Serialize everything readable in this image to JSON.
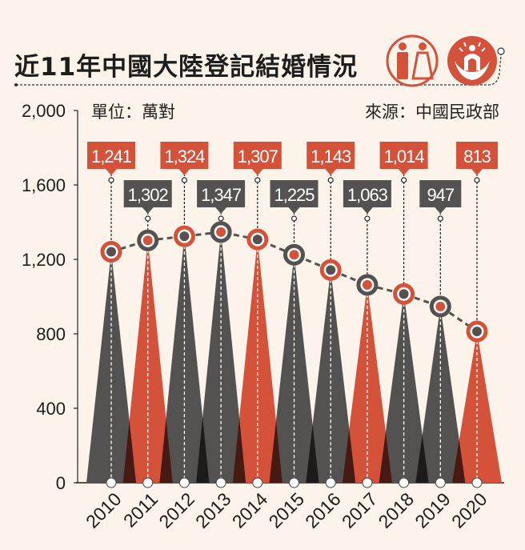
{
  "title": "近11年中國大陸登記結婚情況",
  "unit": "單位：萬對",
  "source": "來源：中國民政部",
  "icons": [
    "wedding-couple-icon",
    "civil-affairs-logo-icon"
  ],
  "colors": {
    "orange": "#d4513a",
    "gray": "#545250",
    "background": "#fcf3ea"
  },
  "chart_data": {
    "type": "bar",
    "categories": [
      "2010",
      "2011",
      "2012",
      "2013",
      "2014",
      "2015",
      "2016",
      "2017",
      "2018",
      "2019",
      "2020"
    ],
    "values": [
      1241,
      1302,
      1324,
      1347,
      1307,
      1225,
      1143,
      1063,
      1014,
      947,
      813
    ],
    "value_labels": [
      "1,241",
      "1,302",
      "1,324",
      "1,347",
      "1,307",
      "1,225",
      "1,143",
      "1,063",
      "1,014",
      "947",
      "813"
    ],
    "bar_colors": [
      "gray",
      "orange",
      "gray",
      "gray",
      "orange",
      "gray",
      "gray",
      "orange",
      "gray",
      "gray",
      "orange"
    ],
    "yticks": [
      "0",
      "400",
      "800",
      "1,200",
      "1,600",
      "2,000"
    ],
    "ytick_values": [
      0,
      400,
      800,
      1200,
      1600,
      2000
    ],
    "ylim": [
      0,
      2000
    ],
    "grid": false
  }
}
